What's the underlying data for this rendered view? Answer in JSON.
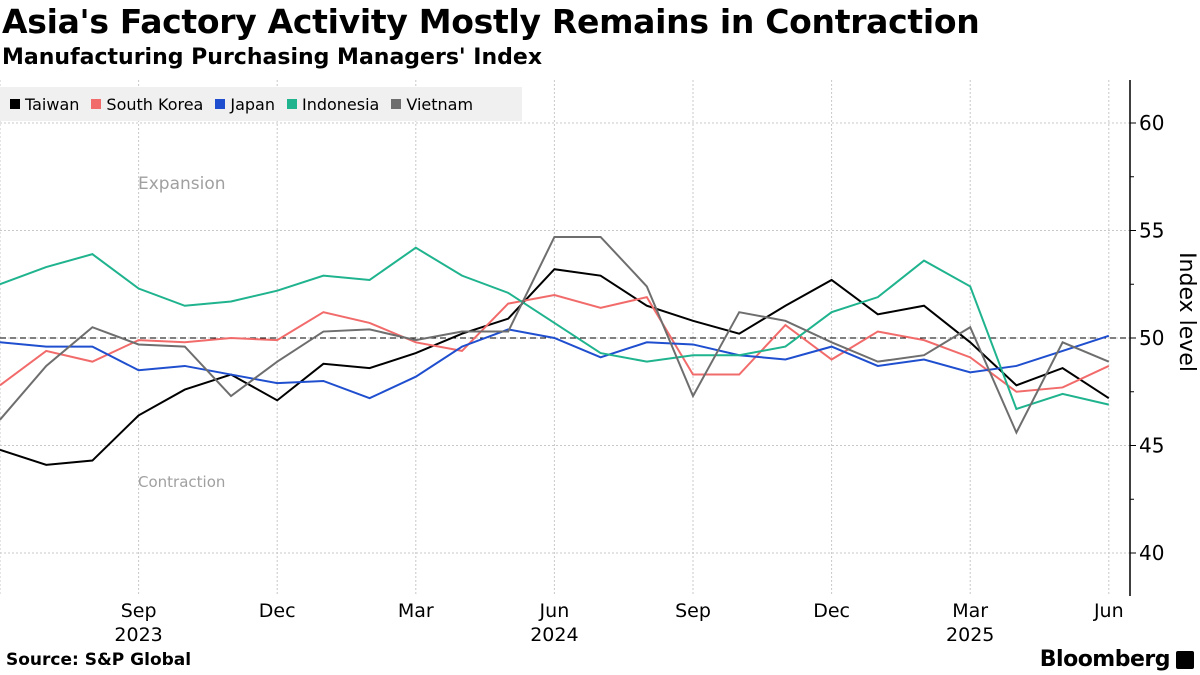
{
  "header": {
    "title": "Asia's Factory Activity Mostly Remains in Contraction",
    "subtitle": "Manufacturing Purchasing Managers' Index"
  },
  "footer": {
    "source": "Source: S&P Global",
    "brand": "Bloomberg"
  },
  "chart_data": {
    "type": "line",
    "title": "Asia's Factory Activity Mostly Remains in Contraction",
    "subtitle": "Manufacturing Purchasing Managers' Index",
    "ylabel": "Index level",
    "ylim": [
      38,
      62
    ],
    "yticks": [
      40,
      45,
      50,
      55,
      60
    ],
    "y_axis_side": "right",
    "grid": true,
    "legend": "top-left",
    "reference_line": 50,
    "annotations": [
      "Expansion",
      "Contraction"
    ],
    "x": [
      "2023-06",
      "2023-07",
      "2023-08",
      "2023-09",
      "2023-10",
      "2023-11",
      "2023-12",
      "2024-01",
      "2024-02",
      "2024-03",
      "2024-04",
      "2024-05",
      "2024-06",
      "2024-07",
      "2024-08",
      "2024-09",
      "2024-10",
      "2024-11",
      "2024-12",
      "2025-01",
      "2025-02",
      "2025-03",
      "2025-04",
      "2025-05",
      "2025-06"
    ],
    "xticks": [
      {
        "label": "Sep",
        "year": "2023",
        "index": 3
      },
      {
        "label": "Dec",
        "year": "",
        "index": 6
      },
      {
        "label": "Mar",
        "year": "",
        "index": 9
      },
      {
        "label": "Jun",
        "year": "2024",
        "index": 12
      },
      {
        "label": "Sep",
        "year": "",
        "index": 15
      },
      {
        "label": "Dec",
        "year": "",
        "index": 18
      },
      {
        "label": "Mar",
        "year": "2025",
        "index": 21
      },
      {
        "label": "Jun",
        "year": "",
        "index": 24
      }
    ],
    "series": [
      {
        "name": "Taiwan",
        "color": "#000000",
        "values": [
          44.8,
          44.1,
          44.3,
          46.4,
          47.6,
          48.3,
          47.1,
          48.8,
          48.6,
          49.3,
          50.2,
          50.9,
          53.2,
          52.9,
          51.5,
          50.8,
          50.2,
          51.5,
          52.7,
          51.1,
          51.5,
          49.8,
          47.8,
          48.6,
          47.2
        ]
      },
      {
        "name": "South Korea",
        "color": "#f26b6b",
        "values": [
          47.8,
          49.4,
          48.9,
          49.9,
          49.8,
          50.0,
          49.9,
          51.2,
          50.7,
          49.8,
          49.4,
          51.6,
          52.0,
          51.4,
          51.9,
          48.3,
          48.3,
          50.6,
          49.0,
          50.3,
          49.9,
          49.1,
          47.5,
          47.7,
          48.7
        ]
      },
      {
        "name": "Japan",
        "color": "#1f4fcf",
        "values": [
          49.8,
          49.6,
          49.6,
          48.5,
          48.7,
          48.3,
          47.9,
          48.0,
          47.2,
          48.2,
          49.6,
          50.4,
          50.0,
          49.1,
          49.8,
          49.7,
          49.2,
          49.0,
          49.6,
          48.7,
          49.0,
          48.4,
          48.7,
          49.4,
          50.1
        ]
      },
      {
        "name": "Indonesia",
        "color": "#1fb38e",
        "values": [
          52.5,
          53.3,
          53.9,
          52.3,
          51.5,
          51.7,
          52.2,
          52.9,
          52.7,
          54.2,
          52.9,
          52.1,
          50.7,
          49.3,
          48.9,
          49.2,
          49.2,
          49.6,
          51.2,
          51.9,
          53.6,
          52.4,
          46.7,
          47.4,
          46.9
        ]
      },
      {
        "name": "Vietnam",
        "color": "#6e6e6e",
        "values": [
          46.2,
          48.7,
          50.5,
          49.7,
          49.6,
          47.3,
          48.9,
          50.3,
          50.4,
          49.9,
          50.3,
          50.3,
          54.7,
          54.7,
          52.4,
          47.3,
          51.2,
          50.8,
          49.8,
          48.9,
          49.2,
          50.5,
          45.6,
          49.8,
          48.9
        ]
      }
    ]
  }
}
